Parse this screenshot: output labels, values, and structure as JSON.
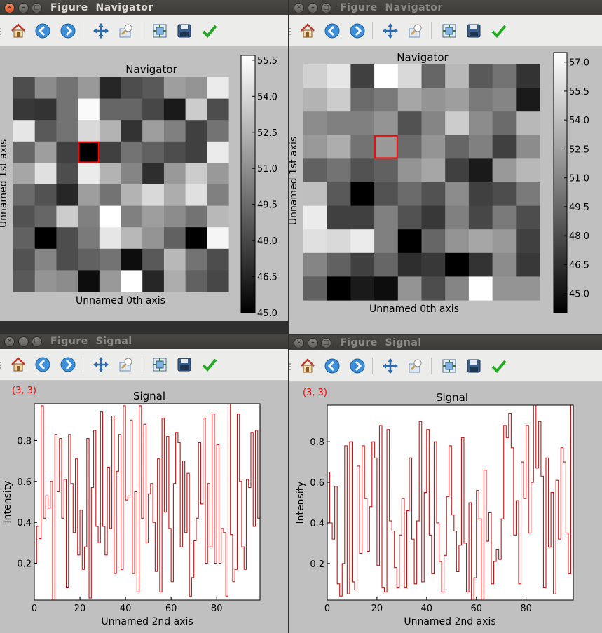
{
  "windows": {
    "w1": {
      "title": "Figure  Navigator"
    },
    "w2": {
      "title": "Figure  Navigator"
    },
    "w3": {
      "title": "Figure  Signal"
    },
    "w4": {
      "title": "Figure  Signal"
    }
  },
  "toolbar_icons": [
    "home-icon",
    "back-icon",
    "forward-icon",
    "pan-icon",
    "zoom-icon",
    "subplots-icon",
    "save-icon",
    "checkmark-icon"
  ],
  "colors": {
    "accent_red": "#ff0000",
    "signal_line": "#c81414",
    "figure_bg": "#c0c0c0"
  },
  "navigator1": {
    "title": "Navigator",
    "xlabel": "Unnamed 0th axis",
    "ylabel": "Unnamed 1st axis",
    "colorbar_ticks": [
      "55.5",
      "54.0",
      "52.5",
      "51.0",
      "49.5",
      "48.0",
      "46.5",
      "45.0"
    ],
    "colorbar_values": [
      55.5,
      54.0,
      52.5,
      51.0,
      49.5,
      48.0,
      46.5,
      45.0
    ],
    "vmin": 45.0,
    "vmax": 55.7,
    "selected": [
      3,
      3
    ],
    "grid": [
      [
        0.3,
        0.55,
        0.45,
        0.6,
        0.15,
        0.3,
        0.35,
        0.62,
        0.58,
        0.92
      ],
      [
        0.22,
        0.2,
        0.45,
        0.98,
        0.4,
        0.4,
        0.28,
        0.1,
        0.8,
        0.3
      ],
      [
        0.9,
        0.35,
        0.45,
        0.85,
        0.7,
        0.2,
        0.62,
        0.5,
        0.25,
        0.45
      ],
      [
        0.4,
        0.62,
        0.25,
        0.0,
        0.25,
        0.45,
        0.38,
        0.3,
        0.25,
        0.92
      ],
      [
        0.65,
        0.88,
        0.3,
        0.92,
        0.7,
        0.52,
        0.18,
        0.6,
        0.8,
        0.6
      ],
      [
        0.42,
        0.32,
        0.15,
        0.62,
        0.45,
        0.7,
        0.85,
        0.68,
        0.88,
        0.5
      ],
      [
        0.32,
        0.4,
        0.8,
        0.5,
        1.0,
        0.5,
        0.62,
        0.55,
        0.45,
        0.72
      ],
      [
        0.38,
        0.0,
        0.3,
        0.48,
        0.9,
        0.72,
        0.58,
        0.38,
        0.0,
        0.96
      ],
      [
        0.32,
        0.52,
        0.3,
        0.38,
        0.45,
        0.05,
        0.35,
        0.72,
        0.45,
        0.3
      ],
      [
        0.35,
        0.58,
        0.55,
        0.05,
        0.6,
        1.0,
        0.15,
        0.68,
        0.38,
        0.28
      ]
    ]
  },
  "navigator2": {
    "title": "Navigator",
    "xlabel": "Unnamed 0th axis",
    "ylabel": "Unnamed 1st axis",
    "colorbar_ticks": [
      "57.0",
      "55.5",
      "54.0",
      "52.5",
      "51.0",
      "49.5",
      "48.0",
      "46.5",
      "45.0"
    ],
    "colorbar_values": [
      57.0,
      55.5,
      54.0,
      52.5,
      51.0,
      49.5,
      48.0,
      46.5,
      45.0
    ],
    "vmin": 44.0,
    "vmax": 57.5,
    "selected": [
      3,
      3
    ],
    "grid": [
      [
        0.82,
        0.9,
        0.25,
        1.0,
        0.85,
        0.4,
        0.72,
        0.35,
        0.45,
        0.2
      ],
      [
        0.7,
        0.8,
        0.42,
        0.48,
        0.65,
        0.58,
        0.62,
        0.48,
        0.52,
        0.1
      ],
      [
        0.55,
        0.5,
        0.5,
        0.58,
        0.32,
        0.52,
        0.8,
        0.55,
        0.42,
        0.72
      ],
      [
        0.6,
        0.68,
        0.45,
        0.6,
        0.42,
        0.58,
        0.4,
        0.5,
        0.25,
        0.55
      ],
      [
        0.38,
        0.45,
        0.32,
        0.38,
        0.58,
        0.65,
        0.25,
        0.1,
        0.6,
        0.72
      ],
      [
        0.75,
        0.35,
        0.0,
        0.32,
        0.42,
        0.32,
        0.55,
        0.25,
        0.3,
        0.48
      ],
      [
        0.92,
        0.25,
        0.25,
        0.5,
        0.32,
        0.22,
        0.5,
        0.28,
        0.48,
        0.3
      ],
      [
        0.88,
        0.85,
        0.92,
        0.5,
        0.0,
        0.4,
        0.58,
        0.65,
        0.6,
        0.25
      ],
      [
        0.52,
        0.38,
        0.25,
        0.4,
        0.18,
        0.22,
        0.0,
        0.2,
        0.55,
        0.22
      ],
      [
        0.38,
        0.0,
        0.1,
        0.05,
        0.58,
        0.3,
        0.52,
        1.0,
        0.58,
        0.58
      ]
    ]
  },
  "signal1": {
    "coord_label": "(3, 3)",
    "chart_data": {
      "type": "line",
      "title": "Signal",
      "xlabel": "Unnamed 2nd axis",
      "ylabel": "Intensity",
      "xlim": [
        0,
        99
      ],
      "ylim": [
        0.02,
        0.98
      ],
      "x_ticks": [
        "0",
        "20",
        "40",
        "60",
        "80"
      ],
      "y_ticks": [
        "0.2",
        "0.4",
        "0.6",
        "0.8"
      ],
      "values": [
        0.2,
        0.38,
        0.32,
        0.97,
        0.42,
        0.53,
        0.47,
        0.6,
        0.02,
        0.83,
        0.55,
        0.81,
        0.42,
        0.61,
        0.08,
        0.83,
        0.59,
        0.35,
        0.71,
        0.24,
        0.46,
        0.17,
        0.28,
        0.81,
        0.03,
        0.57,
        0.85,
        0.38,
        0.3,
        0.94,
        0.38,
        0.24,
        0.67,
        0.37,
        0.92,
        0.15,
        0.65,
        0.83,
        0.17,
        0.97,
        0.51,
        0.53,
        0.9,
        0.15,
        0.55,
        0.06,
        0.97,
        0.42,
        0.88,
        0.3,
        0.54,
        0.59,
        0.4,
        0.16,
        0.71,
        0.06,
        0.91,
        0.45,
        0.82,
        0.37,
        0.11,
        0.59,
        0.84,
        0.79,
        0.28,
        0.7,
        0.35,
        0.64,
        0.04,
        0.13,
        0.31,
        0.42,
        0.79,
        0.49,
        0.91,
        0.2,
        0.59,
        0.28,
        0.93,
        0.2,
        0.78,
        0.2,
        0.37,
        0.35,
        0.04,
        0.98,
        0.34,
        0.11,
        0.17,
        0.93,
        0.6,
        0.28,
        0.17,
        0.61,
        0.57,
        0.84,
        0.38,
        0.85,
        0.42,
        0.97
      ]
    }
  },
  "signal2": {
    "coord_label": "(3, 3)",
    "chart_data": {
      "type": "line",
      "title": "Signal",
      "xlabel": "Unnamed 2nd axis",
      "ylabel": "Intensity",
      "xlim": [
        0,
        99
      ],
      "ylim": [
        0.02,
        0.98
      ],
      "x_ticks": [
        "0",
        "20",
        "40",
        "60",
        "80"
      ],
      "y_ticks": [
        "0.2",
        "0.4",
        "0.6",
        "0.8"
      ],
      "values": [
        0.65,
        0.4,
        0.32,
        0.58,
        0.1,
        0.04,
        0.2,
        0.78,
        0.05,
        0.8,
        0.11,
        0.07,
        0.68,
        0.25,
        0.78,
        0.52,
        0.26,
        0.48,
        0.8,
        0.72,
        0.19,
        0.88,
        0.08,
        0.06,
        0.86,
        0.41,
        0.36,
        0.18,
        0.08,
        0.34,
        0.52,
        0.08,
        0.46,
        0.72,
        0.32,
        0.1,
        0.41,
        0.9,
        0.11,
        0.55,
        0.86,
        0.34,
        0.15,
        0.8,
        0.4,
        0.21,
        0.06,
        0.24,
        0.53,
        0.78,
        0.44,
        0.36,
        0.16,
        0.29,
        0.82,
        0.3,
        0.06,
        0.5,
        0.02,
        0.13,
        0.56,
        0.42,
        0.02,
        0.66,
        0.31,
        0.45,
        0.1,
        0.21,
        0.27,
        0.22,
        0.42,
        0.88,
        0.82,
        0.94,
        0.77,
        0.34,
        0.51,
        0.1,
        0.7,
        0.52,
        0.88,
        0.35,
        0.6,
        0.98,
        0.67,
        0.9,
        0.63,
        0.08,
        0.72,
        0.28,
        0.55,
        0.05,
        0.61,
        0.32,
        0.77,
        0.7,
        0.35,
        0.15,
        0.98,
        0.18
      ]
    }
  }
}
